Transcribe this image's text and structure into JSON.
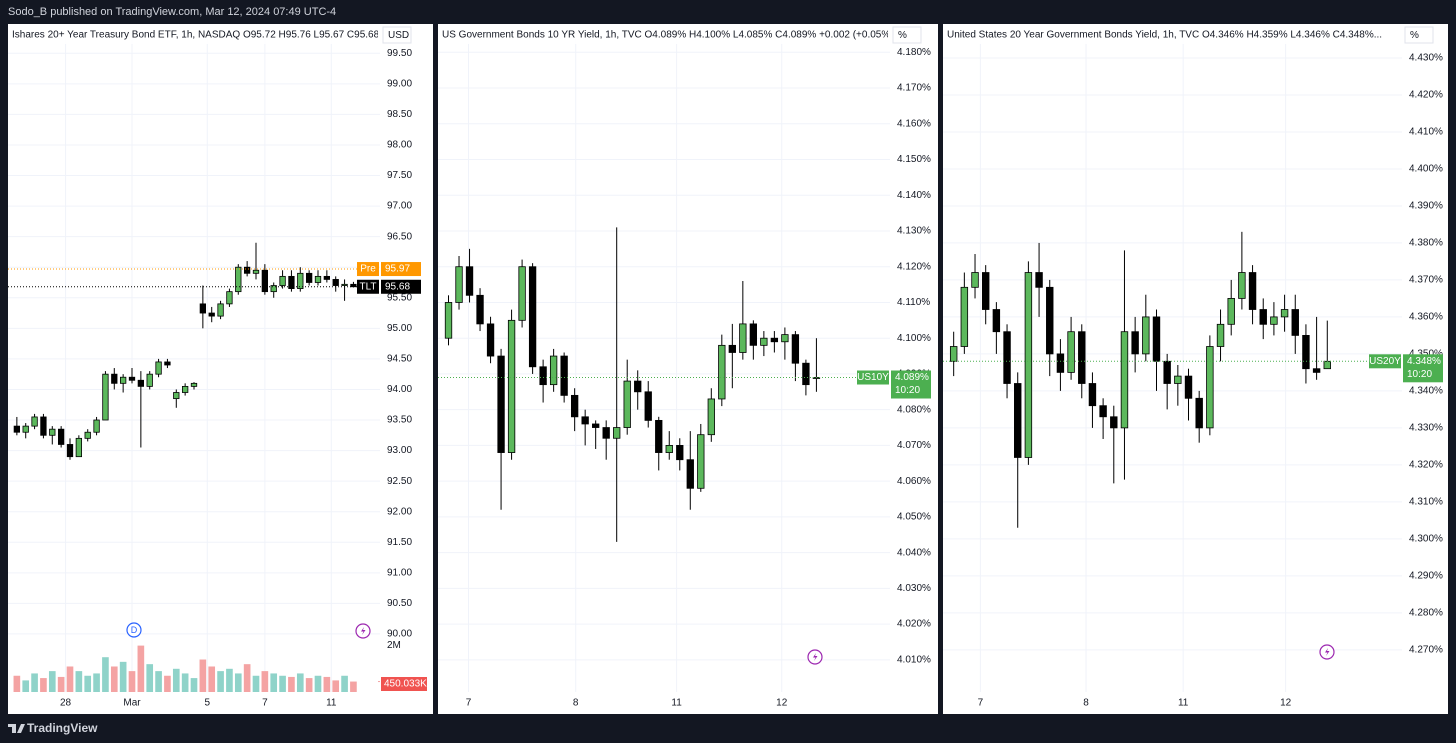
{
  "header": "Sodo_B published on TradingView.com, Mar 12, 2024 07:49 UTC-4",
  "footer": "TradingView",
  "chart_data": [
    {
      "type": "candlestick",
      "title": "Ishares 20+ Year Treasury Bond ETF, 1h, NASDAQ O95.72 H95.76 L95.67 C95.68...",
      "unit": "USD",
      "up_color": "#5cb85c",
      "down_color": "#000000",
      "xlim": [
        -1,
        41
      ],
      "xticks": [
        {
          "value": 5.5,
          "label": "28"
        },
        {
          "value": 13,
          "label": "Mar"
        },
        {
          "value": 21.5,
          "label": "5"
        },
        {
          "value": 28,
          "label": "7"
        },
        {
          "value": 35.5,
          "label": "11"
        }
      ],
      "ylim": [
        89.05,
        99.75
      ],
      "yticks": [
        {
          "value": 90,
          "label": "90.00"
        },
        {
          "value": 90.5,
          "label": "90.50"
        },
        {
          "value": 91,
          "label": "91.00"
        },
        {
          "value": 91.5,
          "label": "91.50"
        },
        {
          "value": 92,
          "label": "92.00"
        },
        {
          "value": 92.5,
          "label": "92.50"
        },
        {
          "value": 93,
          "label": "93.00"
        },
        {
          "value": 93.5,
          "label": "93.50"
        },
        {
          "value": 94,
          "label": "94.00"
        },
        {
          "value": 94.5,
          "label": "94.50"
        },
        {
          "value": 95,
          "label": "95.00"
        },
        {
          "value": 95.5,
          "label": "95.50"
        },
        {
          "value": 96,
          "label": "96.00"
        },
        {
          "value": 96.5,
          "label": "96.50"
        },
        {
          "value": 97,
          "label": "97.00"
        },
        {
          "value": 97.5,
          "label": "97.50"
        },
        {
          "value": 98,
          "label": "98.00"
        },
        {
          "value": 98.5,
          "label": "98.50"
        },
        {
          "value": 99,
          "label": "99.00"
        },
        {
          "value": 99.5,
          "label": "99.50"
        }
      ],
      "candles": {
        "open": [
          93.4,
          93.3,
          93.4,
          93.55,
          93.25,
          93.35,
          93.1,
          92.9,
          93.2,
          93.3,
          93.5,
          94.25,
          94.1,
          94.2,
          94.15,
          94.05,
          94.25,
          94.45,
          93.85,
          93.95,
          94.05,
          95.4,
          95.25,
          95.2,
          95.4,
          95.6,
          96.0,
          95.9,
          95.95,
          95.6,
          95.7,
          95.85,
          95.65,
          95.9,
          95.75,
          95.85,
          95.8,
          95.7,
          95.72
        ],
        "high": [
          93.55,
          93.45,
          93.6,
          93.6,
          93.4,
          93.4,
          93.2,
          93.25,
          93.35,
          93.55,
          94.3,
          94.35,
          94.25,
          94.35,
          94.3,
          94.3,
          94.5,
          94.5,
          94.0,
          94.1,
          94.12,
          95.7,
          95.35,
          95.45,
          95.65,
          96.05,
          96.1,
          96.4,
          96.05,
          95.75,
          95.95,
          95.95,
          96.0,
          95.95,
          95.95,
          95.95,
          95.85,
          95.8,
          95.76
        ],
        "low": [
          93.25,
          93.2,
          93.35,
          93.2,
          93.1,
          93.05,
          92.85,
          92.9,
          93.15,
          93.25,
          93.5,
          94.0,
          93.95,
          94.1,
          93.05,
          94.0,
          94.2,
          94.35,
          93.7,
          93.9,
          94.0,
          95.0,
          95.1,
          95.15,
          95.35,
          95.55,
          95.85,
          95.8,
          95.55,
          95.5,
          95.65,
          95.6,
          95.6,
          95.7,
          95.7,
          95.75,
          95.6,
          95.45,
          95.67
        ],
        "close": [
          93.3,
          93.4,
          93.55,
          93.25,
          93.35,
          93.1,
          92.9,
          93.2,
          93.3,
          93.5,
          94.25,
          94.1,
          94.2,
          94.15,
          94.05,
          94.25,
          94.45,
          94.4,
          93.95,
          94.05,
          94.1,
          95.25,
          95.2,
          95.4,
          95.6,
          96.0,
          95.9,
          95.95,
          95.6,
          95.7,
          95.85,
          95.65,
          95.9,
          95.75,
          95.85,
          95.8,
          95.7,
          95.72,
          95.68
        ]
      },
      "price_lines": [
        {
          "name": "Pre",
          "value": 95.97,
          "color": "#ff9800"
        },
        {
          "name": "TLT",
          "value": 95.68,
          "color": "#000000"
        }
      ],
      "event_marker": "D",
      "volume": {
        "values": [
          700000,
          500000,
          800000,
          600000,
          900000,
          650000,
          1100000,
          900000,
          700000,
          800000,
          1500000,
          1100000,
          1300000,
          900000,
          2000000,
          1200000,
          900000,
          700000,
          1000000,
          800000,
          600000,
          1400000,
          1100000,
          900000,
          1000000,
          800000,
          1200000,
          700000,
          900000,
          800000,
          700000,
          650000,
          800000,
          600000,
          700000,
          650000,
          500000,
          700000,
          450033
        ],
        "last_value_label": "450.033K",
        "ylim": [
          0,
          2500000
        ],
        "yticks": [
          {
            "value": 2000000,
            "label": "2M"
          }
        ],
        "up_color": "#8fd3c9",
        "down_color": "#f4a3a3"
      }
    },
    {
      "type": "candlestick",
      "title": "US Government Bonds 10 YR Yield, 1h, TVC O4.089% H4.100% L4.085% C4.089% +0.002 (+0.05%)...",
      "unit": "%",
      "up_color": "#5cb85c",
      "down_color": "#000000",
      "xlim": [
        -1,
        42
      ],
      "xticks": [
        {
          "value": 1.9,
          "label": "7"
        },
        {
          "value": 12.1,
          "label": "8"
        },
        {
          "value": 21.7,
          "label": "11"
        },
        {
          "value": 31.7,
          "label": "12"
        }
      ],
      "ylim": [
        4.001,
        4.184
      ],
      "yticks": [
        {
          "value": 4.01,
          "label": "4.010%"
        },
        {
          "value": 4.02,
          "label": "4.020%"
        },
        {
          "value": 4.03,
          "label": "4.030%"
        },
        {
          "value": 4.04,
          "label": "4.040%"
        },
        {
          "value": 4.05,
          "label": "4.050%"
        },
        {
          "value": 4.06,
          "label": "4.060%"
        },
        {
          "value": 4.07,
          "label": "4.070%"
        },
        {
          "value": 4.08,
          "label": "4.080%"
        },
        {
          "value": 4.09,
          "label": "4.090%"
        },
        {
          "value": 4.1,
          "label": "4.100%"
        },
        {
          "value": 4.11,
          "label": "4.110%"
        },
        {
          "value": 4.12,
          "label": "4.120%"
        },
        {
          "value": 4.13,
          "label": "4.130%"
        },
        {
          "value": 4.14,
          "label": "4.140%"
        },
        {
          "value": 4.15,
          "label": "4.150%"
        },
        {
          "value": 4.16,
          "label": "4.160%"
        },
        {
          "value": 4.17,
          "label": "4.170%"
        },
        {
          "value": 4.18,
          "label": "4.180%"
        }
      ],
      "candles": {
        "open": [
          4.1,
          4.11,
          4.12,
          4.112,
          4.104,
          4.095,
          4.068,
          4.105,
          4.12,
          4.092,
          4.087,
          4.095,
          4.084,
          4.078,
          4.076,
          4.075,
          4.072,
          4.075,
          4.088,
          4.085,
          4.077,
          4.068,
          4.07,
          4.066,
          4.058,
          4.073,
          4.083,
          4.098,
          4.096,
          4.104,
          4.098,
          4.1,
          4.099,
          4.101,
          4.093,
          4.089
        ],
        "high": [
          4.112,
          4.123,
          4.125,
          4.114,
          4.106,
          4.097,
          4.108,
          4.122,
          4.121,
          4.094,
          4.097,
          4.096,
          4.086,
          4.08,
          4.077,
          4.077,
          4.131,
          4.094,
          4.091,
          4.088,
          4.078,
          4.074,
          4.072,
          4.074,
          4.076,
          4.086,
          4.101,
          4.104,
          4.116,
          4.105,
          4.102,
          4.102,
          4.103,
          4.102,
          4.094,
          4.1
        ],
        "low": [
          4.098,
          4.108,
          4.11,
          4.102,
          4.093,
          4.052,
          4.066,
          4.103,
          4.09,
          4.082,
          4.085,
          4.082,
          4.074,
          4.07,
          4.069,
          4.066,
          4.043,
          4.073,
          4.08,
          4.075,
          4.063,
          4.066,
          4.063,
          4.052,
          4.057,
          4.071,
          4.081,
          4.086,
          4.094,
          4.094,
          4.095,
          4.096,
          4.094,
          4.088,
          4.084,
          4.085
        ],
        "close": [
          4.11,
          4.12,
          4.112,
          4.104,
          4.095,
          4.068,
          4.105,
          4.12,
          4.092,
          4.087,
          4.095,
          4.084,
          4.078,
          4.076,
          4.075,
          4.072,
          4.075,
          4.088,
          4.085,
          4.077,
          4.068,
          4.07,
          4.066,
          4.058,
          4.073,
          4.083,
          4.098,
          4.096,
          4.104,
          4.098,
          4.1,
          4.099,
          4.101,
          4.093,
          4.087,
          4.089
        ]
      },
      "price_lines": [
        {
          "name": "US10Y",
          "value": 4.089,
          "label": "4.089%",
          "countdown": "10:20",
          "color": "#4caf50"
        }
      ]
    },
    {
      "type": "candlestick",
      "title": "United States 20 Year Government Bonds Yield, 1h, TVC O4.346% H4.359% L4.346% C4.348%...",
      "unit": "%",
      "up_color": "#5cb85c",
      "down_color": "#000000",
      "xlim": [
        -1,
        42
      ],
      "xticks": [
        {
          "value": 2.5,
          "label": "7"
        },
        {
          "value": 12.4,
          "label": "8"
        },
        {
          "value": 21.5,
          "label": "11"
        },
        {
          "value": 31.1,
          "label": "12"
        }
      ],
      "ylim": [
        4.2586,
        4.4354
      ],
      "yticks": [
        {
          "value": 4.27,
          "label": "4.270%"
        },
        {
          "value": 4.28,
          "label": "4.280%"
        },
        {
          "value": 4.29,
          "label": "4.290%"
        },
        {
          "value": 4.3,
          "label": "4.300%"
        },
        {
          "value": 4.31,
          "label": "4.310%"
        },
        {
          "value": 4.32,
          "label": "4.320%"
        },
        {
          "value": 4.33,
          "label": "4.330%"
        },
        {
          "value": 4.34,
          "label": "4.340%"
        },
        {
          "value": 4.35,
          "label": "4.350%"
        },
        {
          "value": 4.36,
          "label": "4.360%"
        },
        {
          "value": 4.37,
          "label": "4.370%"
        },
        {
          "value": 4.38,
          "label": "4.380%"
        },
        {
          "value": 4.39,
          "label": "4.390%"
        },
        {
          "value": 4.4,
          "label": "4.400%"
        },
        {
          "value": 4.41,
          "label": "4.410%"
        },
        {
          "value": 4.42,
          "label": "4.420%"
        },
        {
          "value": 4.43,
          "label": "4.430%"
        }
      ],
      "candles": {
        "open": [
          4.348,
          4.352,
          4.368,
          4.372,
          4.362,
          4.356,
          4.342,
          4.322,
          4.372,
          4.368,
          4.35,
          4.345,
          4.356,
          4.342,
          4.336,
          4.333,
          4.33,
          4.356,
          4.35,
          4.36,
          4.348,
          4.342,
          4.344,
          4.338,
          4.33,
          4.352,
          4.358,
          4.365,
          4.372,
          4.362,
          4.358,
          4.36,
          4.362,
          4.355,
          4.346,
          4.346
        ],
        "high": [
          4.356,
          4.372,
          4.377,
          4.374,
          4.364,
          4.358,
          4.345,
          4.375,
          4.38,
          4.37,
          4.354,
          4.36,
          4.358,
          4.345,
          4.338,
          4.336,
          4.378,
          4.36,
          4.366,
          4.362,
          4.35,
          4.347,
          4.346,
          4.34,
          4.355,
          4.362,
          4.37,
          4.383,
          4.374,
          4.365,
          4.364,
          4.366,
          4.366,
          4.358,
          4.36,
          4.359
        ],
        "low": [
          4.344,
          4.35,
          4.365,
          4.358,
          4.35,
          4.338,
          4.303,
          4.32,
          4.36,
          4.344,
          4.34,
          4.343,
          4.338,
          4.33,
          4.327,
          4.315,
          4.316,
          4.345,
          4.348,
          4.34,
          4.335,
          4.336,
          4.332,
          4.326,
          4.328,
          4.348,
          4.355,
          4.362,
          4.358,
          4.354,
          4.355,
          4.356,
          4.35,
          4.342,
          4.343,
          4.346
        ],
        "close": [
          4.352,
          4.368,
          4.372,
          4.362,
          4.356,
          4.342,
          4.322,
          4.372,
          4.368,
          4.35,
          4.345,
          4.356,
          4.342,
          4.336,
          4.333,
          4.33,
          4.356,
          4.35,
          4.36,
          4.348,
          4.342,
          4.344,
          4.338,
          4.33,
          4.352,
          4.358,
          4.365,
          4.372,
          4.362,
          4.358,
          4.36,
          4.362,
          4.355,
          4.346,
          4.345,
          4.348
        ]
      },
      "price_lines": [
        {
          "name": "US20Y",
          "value": 4.348,
          "label": "4.348%",
          "countdown": "10:20",
          "color": "#4caf50"
        }
      ]
    }
  ]
}
